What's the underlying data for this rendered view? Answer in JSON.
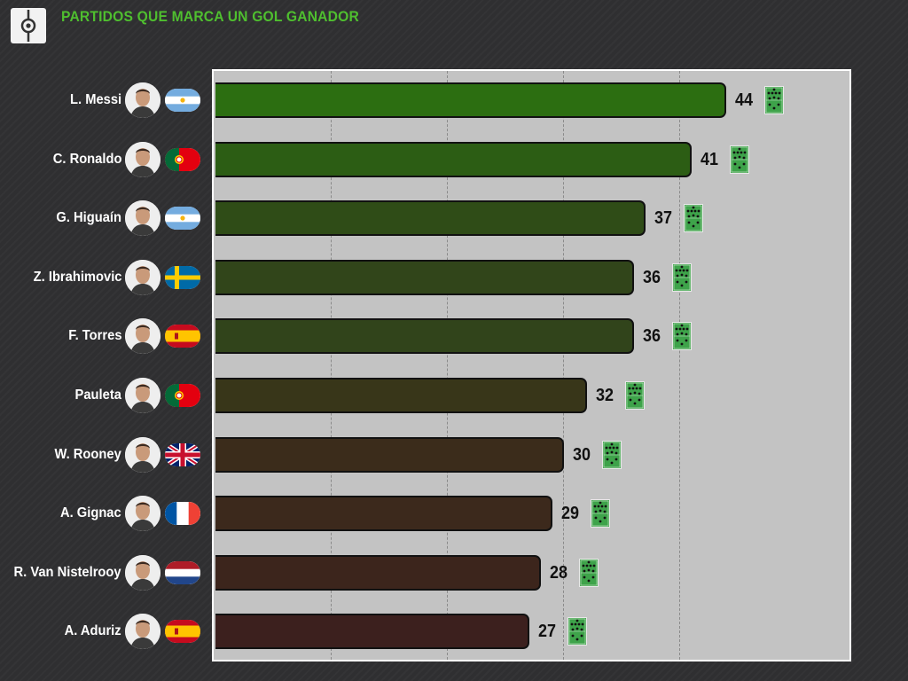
{
  "header": {
    "title": "PARTIDOS QUE MARCA UN GOL GANADOR",
    "logo_icon": "target-logo-icon"
  },
  "chart_data": {
    "type": "bar",
    "orientation": "horizontal",
    "title": "PARTIDOS QUE MARCA UN GOL GANADOR",
    "categories": [
      "L. Messi",
      "C. Ronaldo",
      "G. Higuaín",
      "Z. Ibrahimovic",
      "F. Torres",
      "Pauleta",
      "W. Rooney",
      "A. Gignac",
      "R. Van Nistelrooy",
      "A. Aduriz"
    ],
    "values": [
      44,
      41,
      37,
      36,
      36,
      32,
      30,
      29,
      28,
      27
    ],
    "value_labels": [
      "44",
      "41",
      "37",
      "36",
      "36",
      "32",
      "30",
      "29",
      "28",
      "27"
    ],
    "flags": [
      "argentina",
      "portugal",
      "argentina",
      "sweden",
      "spain",
      "portugal",
      "united-kingdom",
      "france",
      "netherlands",
      "spain"
    ],
    "bar_colors": [
      "#2c6e11",
      "#2c5d14",
      "#2f4c17",
      "#31451a",
      "#31441b",
      "#383619",
      "#3b2c1b",
      "#3c291c",
      "#3c251c",
      "#3c201e"
    ],
    "xlim": [
      0,
      50
    ],
    "grid": true,
    "icon": "soccer-pitch-icon"
  }
}
